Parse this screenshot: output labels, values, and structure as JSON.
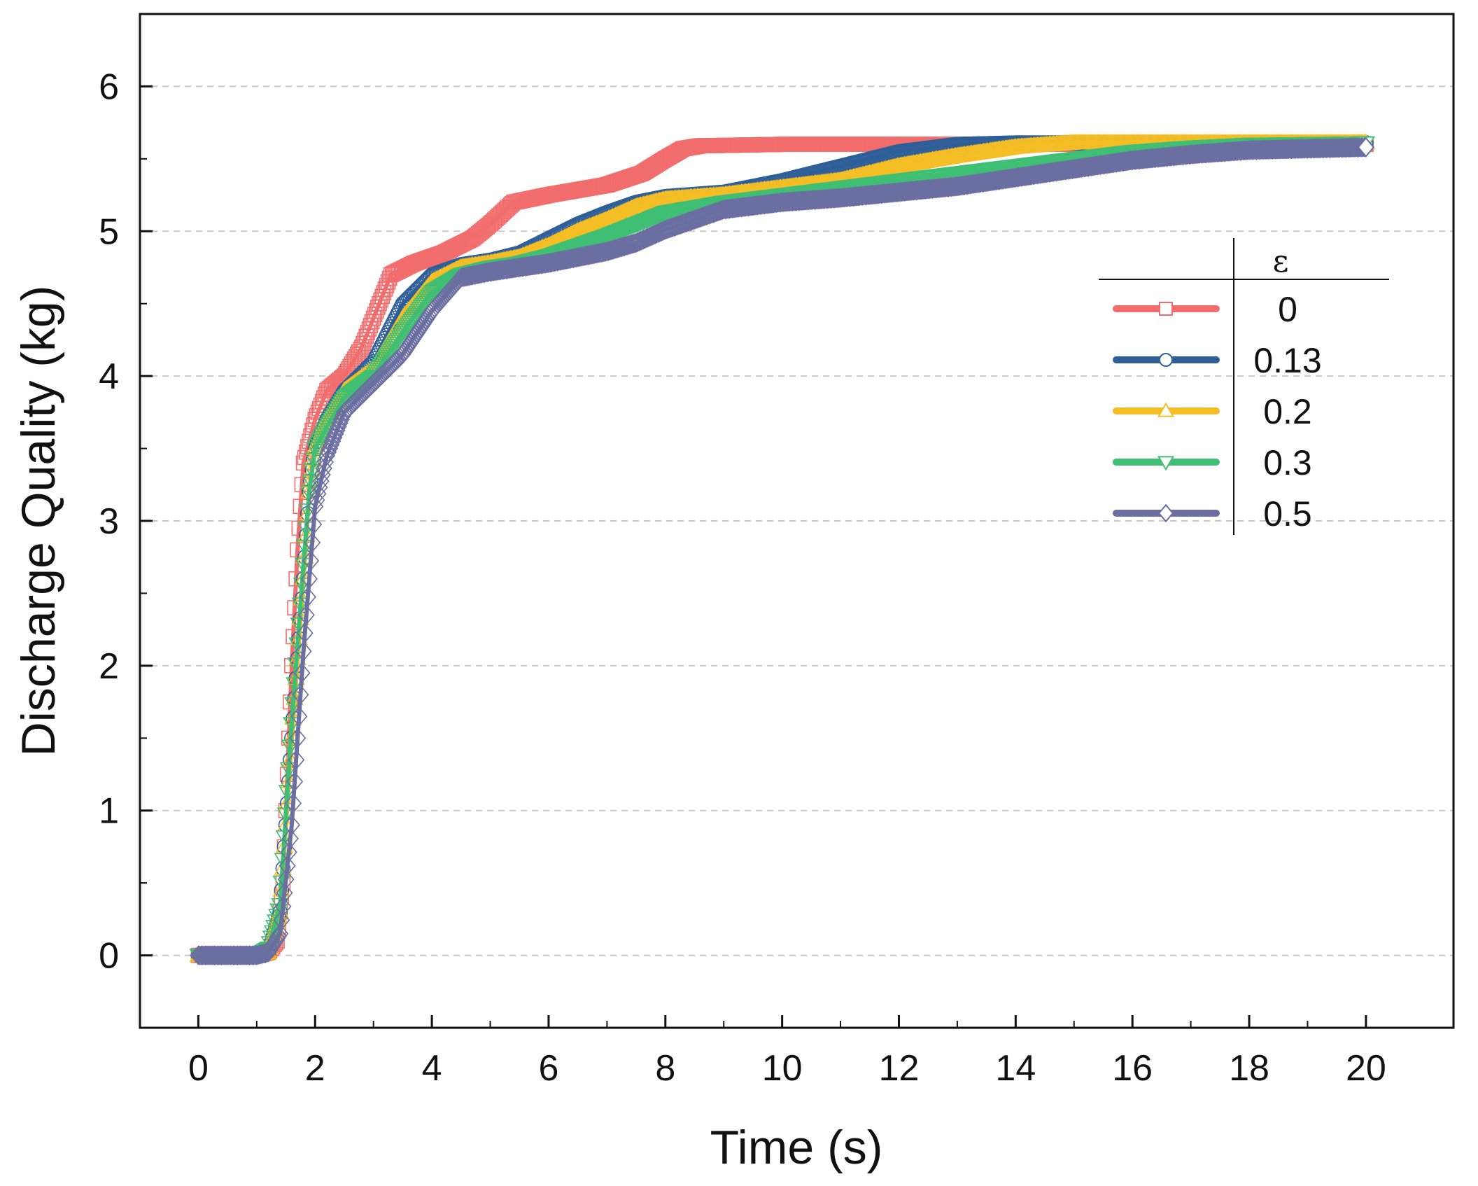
{
  "chart_data": {
    "type": "line",
    "title": "",
    "xlabel": "Time (s)",
    "ylabel": "Discharge Quality (kg)",
    "xlim": [
      -1,
      21.5
    ],
    "ylim": [
      -0.5,
      6.5
    ],
    "xticks": [
      0,
      2,
      4,
      6,
      8,
      10,
      12,
      14,
      16,
      18,
      20
    ],
    "yticks": [
      0,
      1,
      2,
      3,
      4,
      5,
      6
    ],
    "grid": "horizontal-dashed",
    "legend_title": "ε",
    "legend_position": "right",
    "series": [
      {
        "name": "0",
        "color": "#f26d6d",
        "marker": "square",
        "points": [
          [
            0,
            0
          ],
          [
            0.5,
            0
          ],
          [
            1,
            0
          ],
          [
            1.2,
            0.02
          ],
          [
            1.35,
            0.1
          ],
          [
            1.45,
            0.5
          ],
          [
            1.5,
            1
          ],
          [
            1.6,
            2
          ],
          [
            1.7,
            2.8
          ],
          [
            1.8,
            3.4
          ],
          [
            2,
            3.7
          ],
          [
            2.2,
            3.9
          ],
          [
            2.5,
            4
          ],
          [
            2.8,
            4.2
          ],
          [
            3,
            4.4
          ],
          [
            3.3,
            4.7
          ],
          [
            3.7,
            4.78
          ],
          [
            4.2,
            4.85
          ],
          [
            4.7,
            4.95
          ],
          [
            5,
            5.05
          ],
          [
            5.4,
            5.2
          ],
          [
            6,
            5.25
          ],
          [
            7,
            5.32
          ],
          [
            7.6,
            5.4
          ],
          [
            8,
            5.5
          ],
          [
            8.3,
            5.57
          ],
          [
            8.6,
            5.59
          ],
          [
            10,
            5.6
          ],
          [
            13,
            5.6
          ],
          [
            20,
            5.6
          ]
        ]
      },
      {
        "name": "0.13",
        "color": "#2e5f99",
        "marker": "circle",
        "points": [
          [
            0,
            0
          ],
          [
            0.5,
            0
          ],
          [
            1,
            0
          ],
          [
            1.2,
            0.02
          ],
          [
            1.4,
            0.3
          ],
          [
            1.6,
            1.5
          ],
          [
            1.8,
            2.6
          ],
          [
            1.9,
            3.2
          ],
          [
            2,
            3.5
          ],
          [
            2.2,
            3.7
          ],
          [
            2.5,
            3.9
          ],
          [
            3,
            4.1
          ],
          [
            3.5,
            4.5
          ],
          [
            4,
            4.7
          ],
          [
            4.5,
            4.77
          ],
          [
            5,
            4.8
          ],
          [
            5.5,
            4.85
          ],
          [
            6,
            4.95
          ],
          [
            6.5,
            5.05
          ],
          [
            7,
            5.13
          ],
          [
            7.5,
            5.2
          ],
          [
            8,
            5.24
          ],
          [
            9,
            5.27
          ],
          [
            10,
            5.35
          ],
          [
            11,
            5.45
          ],
          [
            12,
            5.55
          ],
          [
            13,
            5.6
          ],
          [
            14,
            5.61
          ],
          [
            20,
            5.61
          ]
        ]
      },
      {
        "name": "0.2",
        "color": "#f5be25",
        "marker": "triangle-up",
        "points": [
          [
            0,
            0
          ],
          [
            0.5,
            0
          ],
          [
            1,
            0
          ],
          [
            1.2,
            0.02
          ],
          [
            1.4,
            0.3
          ],
          [
            1.6,
            1.5
          ],
          [
            1.8,
            2.6
          ],
          [
            1.9,
            3.2
          ],
          [
            2,
            3.5
          ],
          [
            2.2,
            3.7
          ],
          [
            2.5,
            3.9
          ],
          [
            3,
            4.05
          ],
          [
            3.5,
            4.4
          ],
          [
            4,
            4.65
          ],
          [
            4.5,
            4.75
          ],
          [
            5,
            4.78
          ],
          [
            5.5,
            4.82
          ],
          [
            6,
            4.9
          ],
          [
            6.5,
            5
          ],
          [
            7,
            5.08
          ],
          [
            7.5,
            5.17
          ],
          [
            8,
            5.22
          ],
          [
            9,
            5.25
          ],
          [
            10,
            5.3
          ],
          [
            11,
            5.35
          ],
          [
            12,
            5.45
          ],
          [
            13,
            5.52
          ],
          [
            14,
            5.58
          ],
          [
            15,
            5.61
          ],
          [
            20,
            5.61
          ]
        ]
      },
      {
        "name": "0.3",
        "color": "#3fbf74",
        "marker": "triangle-down",
        "points": [
          [
            0,
            0
          ],
          [
            0.5,
            0
          ],
          [
            1,
            0
          ],
          [
            1.2,
            0.05
          ],
          [
            1.4,
            0.35
          ],
          [
            1.6,
            1.6
          ],
          [
            1.8,
            2.7
          ],
          [
            1.9,
            3.2
          ],
          [
            2,
            3.5
          ],
          [
            2.2,
            3.65
          ],
          [
            2.5,
            3.85
          ],
          [
            3,
            4
          ],
          [
            3.5,
            4.3
          ],
          [
            4,
            4.58
          ],
          [
            4.5,
            4.7
          ],
          [
            5,
            4.75
          ],
          [
            5.5,
            4.78
          ],
          [
            6,
            4.83
          ],
          [
            6.5,
            4.9
          ],
          [
            7,
            4.97
          ],
          [
            7.5,
            5.05
          ],
          [
            8,
            5.13
          ],
          [
            9,
            5.2
          ],
          [
            10,
            5.25
          ],
          [
            11,
            5.3
          ],
          [
            12,
            5.35
          ],
          [
            13,
            5.4
          ],
          [
            14,
            5.45
          ],
          [
            15,
            5.5
          ],
          [
            16,
            5.55
          ],
          [
            17,
            5.58
          ],
          [
            18,
            5.6
          ],
          [
            20,
            5.61
          ]
        ]
      },
      {
        "name": "0.5",
        "color": "#6b6ea0",
        "marker": "diamond",
        "points": [
          [
            0,
            0
          ],
          [
            0.5,
            0
          ],
          [
            1,
            0
          ],
          [
            1.2,
            0.02
          ],
          [
            1.4,
            0.15
          ],
          [
            1.6,
            0.9
          ],
          [
            1.8,
            2.1
          ],
          [
            2,
            3.1
          ],
          [
            2.2,
            3.45
          ],
          [
            2.5,
            3.75
          ],
          [
            3,
            3.95
          ],
          [
            3.5,
            4.15
          ],
          [
            4,
            4.45
          ],
          [
            4.5,
            4.68
          ],
          [
            5,
            4.72
          ],
          [
            5.5,
            4.75
          ],
          [
            6,
            4.78
          ],
          [
            6.5,
            4.82
          ],
          [
            7,
            4.86
          ],
          [
            7.5,
            4.92
          ],
          [
            8,
            5.01
          ],
          [
            8.5,
            5.08
          ],
          [
            9,
            5.15
          ],
          [
            10,
            5.2
          ],
          [
            11,
            5.23
          ],
          [
            12,
            5.27
          ],
          [
            13,
            5.31
          ],
          [
            14,
            5.37
          ],
          [
            15,
            5.43
          ],
          [
            16,
            5.49
          ],
          [
            17,
            5.53
          ],
          [
            18,
            5.56
          ],
          [
            19,
            5.57
          ],
          [
            20,
            5.58
          ]
        ]
      }
    ]
  }
}
